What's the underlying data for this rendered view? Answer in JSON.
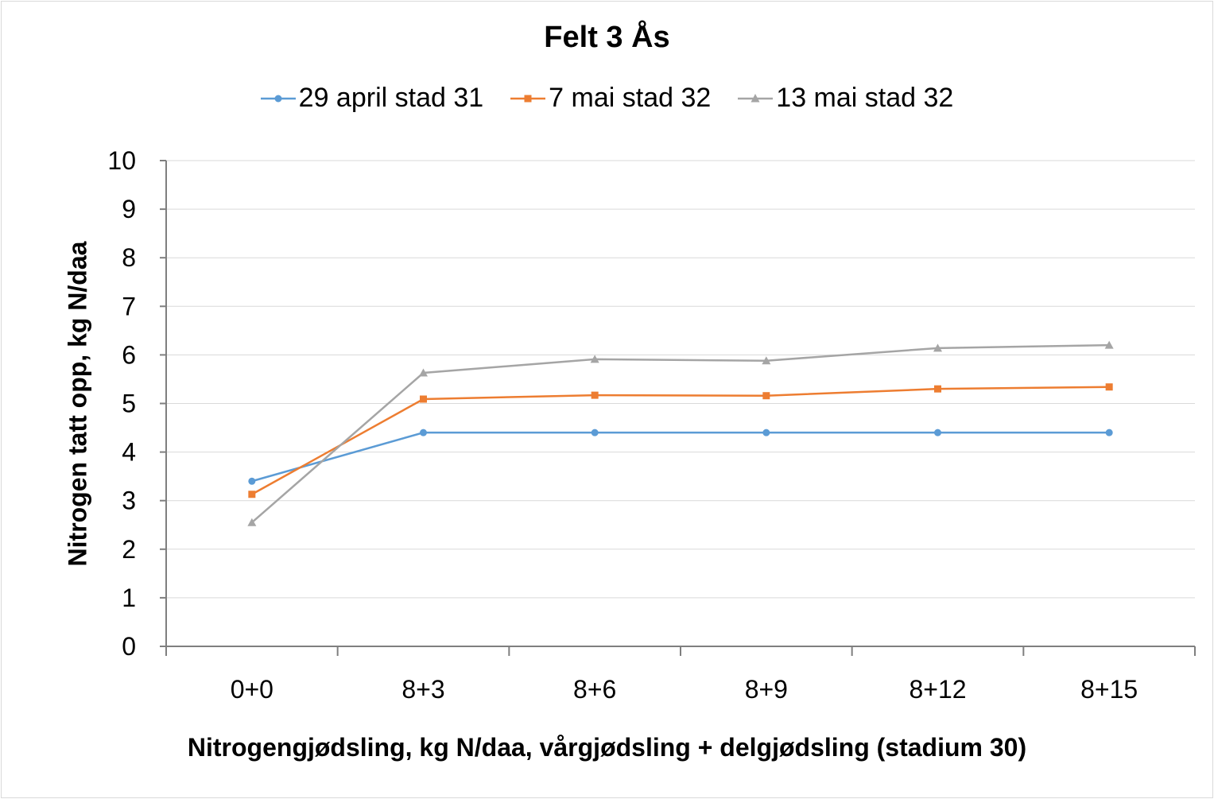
{
  "chart_data": {
    "type": "line",
    "title": "Felt 3 Ås",
    "xlabel": "Nitrogengjødsling, kg N/daa, vårgjødsling + delgjødsling (stadium 30)",
    "ylabel": "Nitrogen tatt opp, kg N/daa",
    "categories": [
      "0+0",
      "8+3",
      "8+6",
      "8+9",
      "8+12",
      "8+15"
    ],
    "ylim": [
      0,
      10
    ],
    "yticks": [
      "0",
      "1",
      "2",
      "3",
      "4",
      "5",
      "6",
      "7",
      "8",
      "9",
      "10"
    ],
    "grid": true,
    "legend_position": "top",
    "series": [
      {
        "name": "29 april stad 31",
        "color": "#5b9bd5",
        "marker": "circle",
        "values": [
          3.4,
          4.4,
          4.4,
          4.4,
          4.4,
          4.4
        ]
      },
      {
        "name": "7 mai stad 32",
        "color": "#ed7d31",
        "marker": "square",
        "values": [
          3.13,
          5.09,
          5.17,
          5.16,
          5.3,
          5.34
        ]
      },
      {
        "name": "13 mai stad 32",
        "color": "#a5a5a5",
        "marker": "triangle",
        "values": [
          2.55,
          5.63,
          5.91,
          5.88,
          6.14,
          6.2
        ]
      }
    ]
  }
}
